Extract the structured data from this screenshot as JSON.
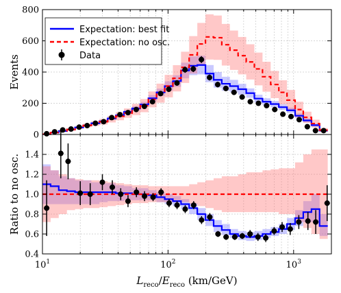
{
  "chart_data": [
    {
      "panel": "top",
      "type": "line",
      "ylabel": "Events",
      "xlabel": "",
      "xscale": "log",
      "xlim": [
        10,
        2000
      ],
      "ylim": [
        0,
        800
      ],
      "grid": true,
      "legend_position": "top-left",
      "x_edges": [
        10,
        11.61,
        13.48,
        15.66,
        18.18,
        21.11,
        24.51,
        28.46,
        33.05,
        38.38,
        44.57,
        51.75,
        60.09,
        69.78,
        81.03,
        94.09,
        109.3,
        126.9,
        147.3,
        171.1,
        198.7,
        230.7,
        267.9,
        311.0,
        361.2,
        419.4,
        487.0,
        565.5,
        656.7,
        762.5,
        885.4,
        1028,
        1194,
        1387,
        1610,
        1870
      ],
      "series": [
        {
          "name": "Expectation: best fit",
          "style": "step-solid",
          "color": "#0000ff",
          "values": [
            2,
            12,
            22,
            32,
            45,
            58,
            72,
            85,
            103,
            122,
            145,
            167,
            192,
            232,
            270,
            310,
            342,
            410,
            440,
            445,
            390,
            350,
            325,
            310,
            290,
            265,
            230,
            210,
            195,
            175,
            155,
            120,
            90,
            60,
            25
          ],
          "band_low": [
            1,
            10,
            19,
            28,
            41,
            53,
            66,
            78,
            95,
            112,
            133,
            153,
            176,
            212,
            246,
            280,
            305,
            360,
            380,
            385,
            335,
            300,
            280,
            270,
            255,
            235,
            205,
            188,
            175,
            157,
            138,
            105,
            78,
            50,
            18
          ],
          "band_high": [
            3,
            14,
            25,
            36,
            49,
            63,
            78,
            92,
            111,
            132,
            157,
            181,
            208,
            252,
            294,
            340,
            379,
            460,
            500,
            505,
            445,
            400,
            370,
            350,
            325,
            295,
            255,
            232,
            215,
            193,
            172,
            135,
            102,
            70,
            32
          ]
        },
        {
          "name": "Expectation: no osc.",
          "style": "step-dashed",
          "color": "#ff0000",
          "values": [
            2,
            12,
            22,
            32,
            45,
            58,
            70,
            82,
            98,
            117,
            137,
            160,
            185,
            225,
            265,
            310,
            360,
            430,
            510,
            580,
            625,
            620,
            575,
            540,
            505,
            465,
            420,
            370,
            320,
            270,
            220,
            160,
            110,
            70,
            28
          ],
          "band_low": [
            1,
            9,
            17,
            25,
            36,
            46,
            55,
            64,
            77,
            91,
            107,
            124,
            143,
            174,
            204,
            238,
            276,
            330,
            390,
            445,
            480,
            478,
            442,
            414,
            385,
            352,
            315,
            274,
            233,
            193,
            155,
            110,
            74,
            45,
            15
          ],
          "band_high": [
            3,
            15,
            27,
            39,
            54,
            70,
            85,
            100,
            119,
            143,
            167,
            196,
            227,
            276,
            326,
            382,
            444,
            530,
            630,
            715,
            770,
            762,
            708,
            666,
            625,
            578,
            525,
            466,
            407,
            347,
            285,
            210,
            146,
            95,
            41
          ]
        },
        {
          "name": "Data",
          "style": "points-errorbars",
          "color": "#000000",
          "x": [
            10.8,
            12.5,
            14.5,
            16.9,
            19.6,
            22.7,
            26.4,
            30.7,
            35.6,
            41.4,
            48.0,
            55.8,
            64.8,
            75.2,
            87.3,
            101.4,
            117.8,
            136.7,
            158.8,
            184.4,
            214.1,
            248.6,
            288.7,
            335.2,
            389.2,
            451.9,
            524.8,
            609.4,
            707.7,
            821.6,
            954.1,
            1108,
            1286,
            1494,
            1735
          ],
          "y": [
            5,
            17,
            29,
            35,
            47,
            57,
            72,
            82,
            108,
            127,
            140,
            160,
            180,
            210,
            262,
            290,
            330,
            415,
            420,
            480,
            365,
            320,
            295,
            270,
            240,
            210,
            200,
            185,
            160,
            130,
            115,
            95,
            50,
            25,
            25
          ],
          "yerr": [
            3,
            5,
            6,
            6,
            7,
            8,
            9,
            9,
            10,
            11,
            12,
            13,
            13,
            14,
            16,
            17,
            18,
            20,
            20,
            22,
            19,
            18,
            17,
            16,
            16,
            15,
            14,
            14,
            13,
            12,
            11,
            10,
            8,
            5,
            5
          ]
        }
      ],
      "tick_labels_y": [
        "0",
        "200",
        "400",
        "600",
        "800"
      ]
    },
    {
      "panel": "bottom",
      "type": "line",
      "ylabel": "Ratio to no osc.",
      "xlabel": "L_reco/E_reco (km/GeV)",
      "xlabel_parts": {
        "L": "L",
        "Lsub": "reco",
        "slash": "/",
        "E": "E",
        "Esub": "reco",
        "unit": " (km/GeV)"
      },
      "xscale": "log",
      "xlim": [
        10,
        2000
      ],
      "ylim": [
        0.4,
        1.6
      ],
      "grid": true,
      "series": [
        {
          "name": "Expectation: best fit",
          "style": "step-solid",
          "color": "#0000ff",
          "values": [
            1.1,
            1.08,
            1.04,
            1.03,
            1.02,
            1.02,
            1.02,
            1.02,
            1.02,
            1.01,
            1.01,
            1.0,
            1.0,
            0.99,
            0.97,
            0.95,
            0.93,
            0.9,
            0.86,
            0.8,
            0.74,
            0.68,
            0.64,
            0.6,
            0.58,
            0.57,
            0.58,
            0.6,
            0.62,
            0.65,
            0.7,
            0.76,
            0.82,
            0.85,
            0.68
          ],
          "band_low": [
            0.9,
            0.9,
            0.9,
            0.9,
            0.9,
            0.9,
            0.9,
            0.92,
            0.93,
            0.93,
            0.94,
            0.94,
            0.94,
            0.94,
            0.92,
            0.9,
            0.88,
            0.85,
            0.8,
            0.74,
            0.68,
            0.62,
            0.59,
            0.56,
            0.54,
            0.53,
            0.54,
            0.56,
            0.58,
            0.6,
            0.64,
            0.68,
            0.72,
            0.72,
            0.58
          ],
          "band_high": [
            1.3,
            1.24,
            1.18,
            1.16,
            1.14,
            1.14,
            1.12,
            1.11,
            1.11,
            1.09,
            1.08,
            1.06,
            1.06,
            1.04,
            1.02,
            1.0,
            0.98,
            0.95,
            0.91,
            0.86,
            0.8,
            0.74,
            0.7,
            0.65,
            0.63,
            0.62,
            0.63,
            0.65,
            0.67,
            0.7,
            0.76,
            0.84,
            0.93,
            1.0,
            0.8
          ]
        },
        {
          "name": "Expectation: no osc.",
          "style": "step-dashed",
          "color": "#ff0000",
          "values": [
            1,
            1,
            1,
            1,
            1,
            1,
            1,
            1,
            1,
            1,
            1,
            1,
            1,
            1,
            1,
            1,
            1,
            1,
            1,
            1,
            1,
            1,
            1,
            1,
            1,
            1,
            1,
            1,
            1,
            1,
            1,
            1,
            1,
            1,
            1
          ],
          "band_low": [
            0.72,
            0.76,
            0.8,
            0.84,
            0.85,
            0.86,
            0.86,
            0.87,
            0.88,
            0.89,
            0.9,
            0.91,
            0.91,
            0.92,
            0.92,
            0.92,
            0.92,
            0.92,
            0.9,
            0.88,
            0.86,
            0.84,
            0.82,
            0.82,
            0.82,
            0.82,
            0.82,
            0.82,
            0.82,
            0.8,
            0.8,
            0.72,
            0.66,
            0.6,
            0.55
          ],
          "band_high": [
            1.28,
            1.24,
            1.2,
            1.16,
            1.15,
            1.14,
            1.14,
            1.13,
            1.12,
            1.11,
            1.1,
            1.09,
            1.09,
            1.08,
            1.08,
            1.08,
            1.08,
            1.08,
            1.1,
            1.12,
            1.14,
            1.16,
            1.18,
            1.18,
            1.2,
            1.22,
            1.22,
            1.24,
            1.25,
            1.26,
            1.26,
            1.32,
            1.4,
            1.45,
            1.45
          ]
        },
        {
          "name": "Data",
          "style": "points-errorbars",
          "color": "#000000",
          "x": [
            10.8,
            14.0,
            16.0,
            20.0,
            24.0,
            30.0,
            36.0,
            42.0,
            48.0,
            56.0,
            65.0,
            76.0,
            88.0,
            102.0,
            118.0,
            137.0,
            160.0,
            185.0,
            215.0,
            250.0,
            290.0,
            340.0,
            390.0,
            450.0,
            520.0,
            600.0,
            700.0,
            810.0,
            940.0,
            1100.0,
            1300.0,
            1500.0,
            1850.0
          ],
          "y": [
            0.86,
            1.41,
            1.33,
            1.01,
            1.0,
            1.12,
            1.07,
            1.0,
            0.93,
            1.02,
            0.98,
            0.97,
            1.02,
            0.91,
            0.89,
            0.85,
            0.89,
            0.74,
            0.77,
            0.6,
            0.57,
            0.57,
            0.58,
            0.6,
            0.57,
            0.56,
            0.63,
            0.67,
            0.65,
            0.72,
            0.73,
            0.72,
            0.91
          ],
          "yerr": [
            0.28,
            0.25,
            0.18,
            0.12,
            0.11,
            0.08,
            0.07,
            0.06,
            0.06,
            0.05,
            0.05,
            0.04,
            0.04,
            0.04,
            0.04,
            0.04,
            0.04,
            0.04,
            0.04,
            0.03,
            0.03,
            0.03,
            0.03,
            0.04,
            0.04,
            0.04,
            0.04,
            0.05,
            0.06,
            0.07,
            0.09,
            0.12,
            0.18
          ]
        }
      ],
      "tick_labels_y": [
        "0.4",
        "0.6",
        "0.8",
        "1.0",
        "1.2",
        "1.4"
      ],
      "tick_labels_x": [
        {
          "value": 10,
          "base": "10",
          "exp": "1"
        },
        {
          "value": 100,
          "base": "10",
          "exp": "2"
        },
        {
          "value": 1000,
          "base": "10",
          "exp": "3"
        }
      ]
    }
  ]
}
